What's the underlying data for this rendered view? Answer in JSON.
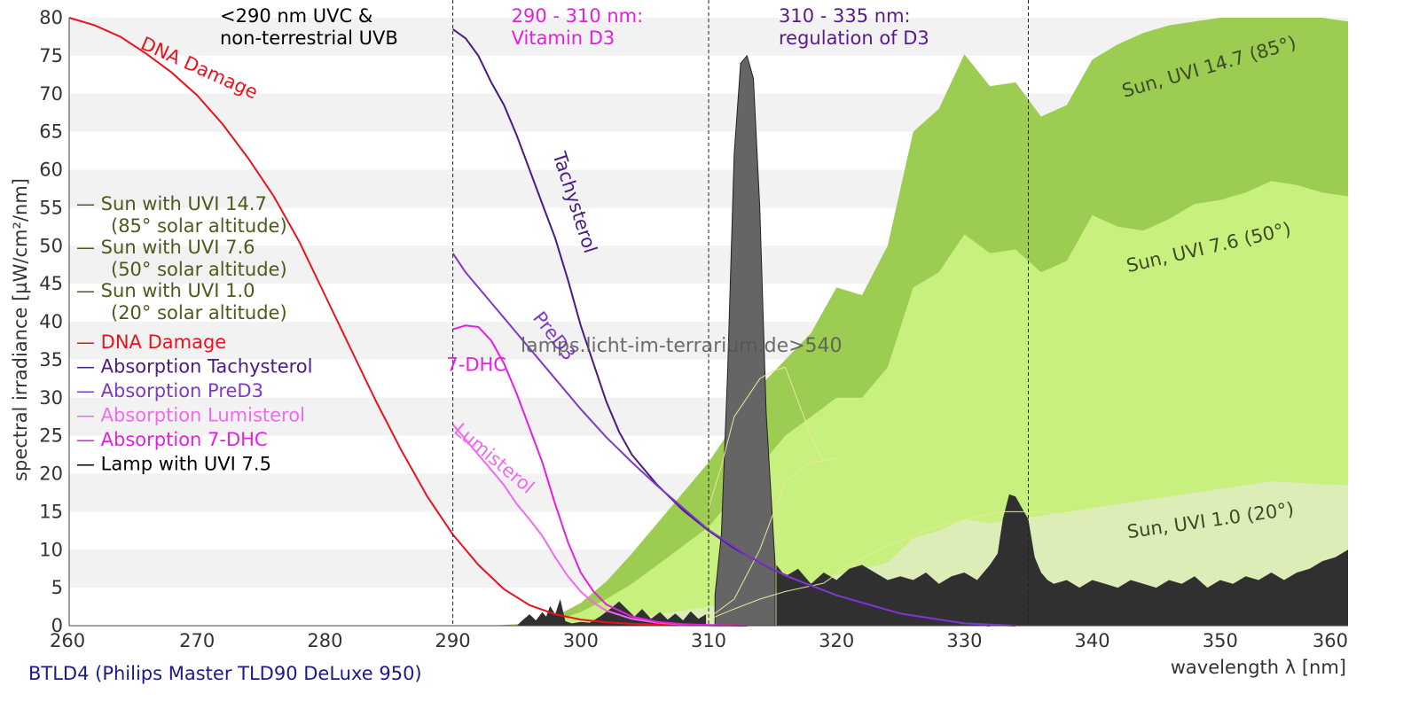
{
  "footer": "BTLD4 (Philips Master TLD90 DeLuxe 950)",
  "watermark": "lamps.licht-im-terrarium.de>540",
  "colors": {
    "band": "#f2f2f2",
    "uvi147": "#9ccc52",
    "uvi76": "#c8f07e",
    "uvi10": "#dcedb7",
    "lamp_light": "#656565",
    "lamp_dark": "#303030",
    "dna": "#e8141c",
    "tachysterol": "#4a1a85",
    "pred3": "#7d39c8",
    "lumisterol": "#f06af0",
    "dhc7": "#e51ee0",
    "legend_sun": "#4a5b1c",
    "d3_region": "#e51ee0",
    "reg_region": "#5a1a8c",
    "footer": "#1a1a8c",
    "axis_text": "#333333",
    "sun_label": "#3d4a26"
  },
  "chart_data": {
    "type": "area",
    "title": "",
    "xlabel": "wavelength λ [nm]",
    "ylabel": "spectral irradiance [µW/cm²/nm]",
    "xlim": [
      260,
      360
    ],
    "ylim": [
      0,
      80
    ],
    "xticks": [
      "260",
      "270",
      "280",
      "290",
      "300",
      "310",
      "320",
      "330",
      "340",
      "350",
      "360"
    ],
    "yticks": [
      "0",
      "5",
      "10",
      "15",
      "20",
      "25",
      "30",
      "35",
      "40",
      "45",
      "50",
      "55",
      "60",
      "65",
      "70",
      "75",
      "80"
    ],
    "vlines": [
      290,
      310,
      335
    ],
    "regions": [
      {
        "key": "uvc",
        "lines": [
          "<290 nm UVC &",
          "non-terrestrial UVB"
        ],
        "color": "#000000"
      },
      {
        "key": "d3",
        "lines": [
          "290 - 310 nm:",
          "Vitamin D3"
        ],
        "color": "#e51ee0"
      },
      {
        "key": "reg",
        "lines": [
          "310 - 335 nm:",
          "regulation of D3"
        ],
        "color": "#5a1a8c"
      }
    ],
    "legend": [
      {
        "text": "— Sun with UVI 14.7",
        "sub": "(85° solar altitude)",
        "color": "#4a5b1c"
      },
      {
        "text": "— Sun with UVI 7.6",
        "sub": "(50° solar altitude)",
        "color": "#4a5b1c"
      },
      {
        "text": "— Sun with UVI 1.0",
        "sub": "(20° solar altitude)",
        "color": "#4a5b1c"
      },
      {
        "text": "— DNA Damage",
        "color": "#e8141c"
      },
      {
        "text": "— Absorption Tachysterol",
        "color": "#4a1a85"
      },
      {
        "text": "— Absorption PreD3",
        "color": "#7d39c8"
      },
      {
        "text": "— Absorption Lumisterol",
        "color": "#f06af0"
      },
      {
        "text": "— Absorption 7-DHC",
        "color": "#e51ee0"
      },
      {
        "text": "— Lamp with UVI 7.5",
        "color": "#000000"
      }
    ],
    "curve_labels": [
      {
        "key": "dna",
        "text": "DNA Damage",
        "x": 265.5,
        "y": 76,
        "angle": 24,
        "color": "#e8141c"
      },
      {
        "key": "tachy",
        "text": "Tachysterol",
        "x": 297.8,
        "y": 62,
        "angle": 72,
        "color": "#4a1a85"
      },
      {
        "key": "pred3",
        "text": "PreD3",
        "x": 296.2,
        "y": 40.5,
        "angle": 52,
        "color": "#7d39c8"
      },
      {
        "key": "dhc",
        "text": "7-DHC",
        "x": 289.5,
        "y": 33.5,
        "angle": 0,
        "color": "#e51ee0"
      },
      {
        "key": "lumi",
        "text": "Lumisterol",
        "x": 290.0,
        "y": 25.5,
        "angle": 40,
        "color": "#f06af0"
      },
      {
        "key": "sun147",
        "text": "Sun, UVI 14.7 (85°)",
        "x": 342.5,
        "y": 69.5,
        "angle": -16,
        "color": "#3d4a26"
      },
      {
        "key": "sun76",
        "text": "Sun, UVI 7.6 (50°)",
        "x": 342.8,
        "y": 46.5,
        "angle": -13,
        "color": "#3d4a26"
      },
      {
        "key": "sun10",
        "text": "Sun, UVI 1.0 (20°)",
        "x": 342.8,
        "y": 11.5,
        "angle": -8,
        "color": "#3d4a26"
      }
    ],
    "series": [
      {
        "name": "Sun with UVI 14.7",
        "kind": "area",
        "x": [
          293,
          296,
          298,
          300,
          302,
          304,
          306,
          308,
          310,
          312,
          314,
          316,
          318,
          320,
          322,
          324,
          326,
          328,
          330,
          332,
          334,
          336,
          338,
          340,
          342,
          344,
          346,
          348,
          350,
          352,
          354,
          356,
          358,
          360
        ],
        "y": [
          0,
          0.3,
          1.2,
          3,
          5.8,
          9.5,
          13.5,
          17.5,
          21.5,
          26.5,
          31.5,
          35,
          38.5,
          44.5,
          43.5,
          50,
          65,
          68,
          75.2,
          71,
          71.5,
          67,
          68.5,
          74.5,
          76.5,
          78,
          79,
          79.5,
          80,
          81,
          83,
          81.5,
          80.5,
          79.5
        ]
      },
      {
        "name": "Sun with UVI 7.6",
        "kind": "area",
        "x": [
          294,
          296,
          298,
          300,
          302,
          304,
          306,
          308,
          310,
          312,
          314,
          316,
          318,
          320,
          322,
          324,
          326,
          328,
          330,
          332,
          334,
          336,
          338,
          340,
          342,
          344,
          346,
          348,
          350,
          352,
          354,
          356,
          358,
          360
        ],
        "y": [
          0,
          0.2,
          0.7,
          1.8,
          3.5,
          5.5,
          8,
          10.5,
          13,
          17,
          21,
          25,
          27.5,
          30,
          30,
          34,
          44.5,
          46.5,
          51.5,
          49,
          49.5,
          46.5,
          48,
          54,
          52.5,
          52,
          53.5,
          55.5,
          56,
          57,
          58.5,
          58,
          57,
          56.5
        ]
      },
      {
        "name": "Sun with UVI 1.0",
        "kind": "area",
        "x": [
          296,
          300,
          305,
          310,
          314,
          318,
          322,
          324,
          326,
          328,
          330,
          332,
          334,
          336,
          338,
          340,
          342,
          344,
          346,
          348,
          350,
          352,
          354,
          356,
          358,
          360
        ],
        "y": [
          0,
          0.3,
          1.2,
          2.5,
          4,
          5.8,
          7.5,
          8.3,
          11.5,
          12.5,
          14,
          13.5,
          14,
          14.5,
          15,
          15.5,
          16,
          16.5,
          17,
          17.5,
          18,
          18.5,
          19,
          18.8,
          18.6,
          18.5
        ]
      },
      {
        "name": "Lamp with UVI 7.5",
        "kind": "area",
        "split_x": 315.2,
        "x": [
          295,
          295.5,
          296,
          296.5,
          297,
          297.3,
          297.6,
          298,
          298.4,
          298.8,
          299.3,
          300,
          300.7,
          301.5,
          302.3,
          303,
          303.6,
          304.2,
          304.8,
          305.5,
          306.2,
          306.8,
          307.4,
          308,
          308.6,
          309.2,
          309.8,
          310.5,
          311,
          311.5,
          312,
          312.5,
          313,
          313.5,
          314,
          314.5,
          315.2,
          315.3,
          316,
          317,
          318,
          319,
          320,
          321,
          322,
          323,
          324,
          325,
          326,
          327,
          328,
          329,
          330,
          331,
          332,
          332.6,
          333,
          333.5,
          334,
          334.5,
          335,
          335.5,
          336,
          336.5,
          337,
          338,
          339,
          340,
          341,
          342,
          343,
          344,
          345,
          346,
          347,
          348,
          349,
          350,
          351,
          352,
          353,
          354,
          355,
          356,
          357,
          358,
          359,
          360
        ],
        "y": [
          0,
          0.8,
          1.5,
          0.7,
          1.8,
          1.2,
          2.6,
          1.5,
          3.5,
          0.6,
          0.3,
          0.5,
          0.4,
          1.2,
          2.2,
          3.2,
          2.2,
          1.2,
          2.2,
          0.9,
          1.8,
          0.8,
          1.6,
          0.7,
          1.9,
          0.9,
          1.5,
          4,
          12,
          34,
          62,
          74,
          75,
          72,
          55,
          28,
          8,
          8,
          6.5,
          7.5,
          5.5,
          7,
          6,
          7.5,
          8,
          7,
          6,
          6.5,
          6,
          7,
          5.5,
          6.5,
          7,
          6,
          8,
          9.5,
          14,
          17.3,
          17,
          15.5,
          14,
          9,
          7,
          6,
          5.5,
          6,
          5,
          6,
          5.5,
          5,
          6,
          5.5,
          5,
          6,
          5.5,
          6.5,
          5,
          6,
          5.5,
          6.5,
          6,
          7,
          6,
          7,
          7.5,
          8.5,
          9,
          10
        ]
      },
      {
        "name": "DNA Damage",
        "kind": "line",
        "x": [
          260,
          262,
          264,
          266,
          268,
          270,
          272,
          274,
          276,
          278,
          280,
          282,
          284,
          286,
          288,
          290,
          292,
          294,
          296,
          298,
          300,
          302,
          304,
          306,
          308,
          310,
          312,
          313
        ],
        "y": [
          80,
          79,
          77.5,
          75.3,
          72.8,
          69.8,
          66,
          61.5,
          56.5,
          50.5,
          43.5,
          36.5,
          29.5,
          23,
          17,
          12,
          8,
          4.8,
          2.7,
          1.5,
          0.8,
          0.45,
          0.25,
          0.15,
          0.1,
          0.06,
          0.03,
          0
        ]
      },
      {
        "name": "Absorption Tachysterol",
        "kind": "line",
        "x": [
          290,
          291,
          292,
          293,
          294,
          295,
          296,
          297,
          298,
          299,
          300,
          301,
          302,
          303,
          304,
          306,
          308,
          310,
          312,
          315,
          318,
          322,
          326,
          330,
          332
        ],
        "y": [
          78.5,
          77.3,
          75,
          71.5,
          68.5,
          64.5,
          60,
          55.5,
          51,
          45.5,
          39.5,
          34.5,
          29.5,
          25.5,
          22.5,
          18.5,
          15.2,
          12.5,
          10.2,
          7.4,
          5.2,
          2.9,
          1.2,
          0.3,
          0
        ]
      },
      {
        "name": "Absorption PreD3",
        "kind": "line",
        "x": [
          290,
          291,
          292,
          293,
          294,
          295,
          296,
          298,
          300,
          302,
          304,
          306,
          308,
          310,
          313,
          316,
          320,
          325,
          330,
          334
        ],
        "y": [
          49,
          46.5,
          44.5,
          42.5,
          40.5,
          38.5,
          36.5,
          32.5,
          28.5,
          24.8,
          21.5,
          18.4,
          15.5,
          12.6,
          9.3,
          6.6,
          4,
          1.6,
          0.3,
          0
        ]
      },
      {
        "name": "Absorption Lumisterol",
        "kind": "line",
        "x": [
          290,
          291,
          292,
          293,
          294,
          295,
          296,
          297,
          298,
          299,
          300,
          301,
          302,
          304,
          306,
          308,
          311
        ],
        "y": [
          26.5,
          24.5,
          22.5,
          20.5,
          18.5,
          16,
          14,
          11.8,
          9,
          6.5,
          4.5,
          3,
          2,
          0.9,
          0.4,
          0.15,
          0
        ]
      },
      {
        "name": "Absorption 7-DHC",
        "kind": "line",
        "x": [
          290,
          291,
          292,
          293,
          294,
          295,
          296,
          297,
          298,
          299,
          300,
          301,
          302,
          304,
          306,
          308,
          310,
          313
        ],
        "y": [
          39,
          39.5,
          39.3,
          37.5,
          34.5,
          30.5,
          26,
          21.5,
          16,
          11,
          7,
          4.5,
          2.8,
          1.2,
          0.5,
          0.2,
          0.08,
          0
        ]
      },
      {
        "name": "Lamp relative to UVI",
        "kind": "line",
        "x": [
          310,
          311,
          312,
          313,
          314,
          315,
          316,
          317,
          318,
          319
        ],
        "y": [
          15.5,
          21,
          27.5,
          30,
          32.5,
          33.5,
          34,
          29.5,
          25,
          21.5
        ]
      },
      {
        "name": "Lamp relative to UVI low",
        "kind": "line",
        "x": [
          310,
          312,
          314,
          316,
          318,
          320
        ],
        "y": [
          1,
          3.5,
          10,
          19,
          21.5,
          22
        ]
      },
      {
        "name": "Lamp relative to UVI tail",
        "kind": "line",
        "x": [
          310,
          312,
          314,
          316,
          319,
          321,
          324,
          327,
          330,
          333,
          336,
          340
        ],
        "y": [
          0.8,
          2.2,
          3.5,
          4.5,
          5.6,
          8,
          10.5,
          12.5,
          14,
          15,
          15,
          14.5
        ]
      }
    ]
  }
}
